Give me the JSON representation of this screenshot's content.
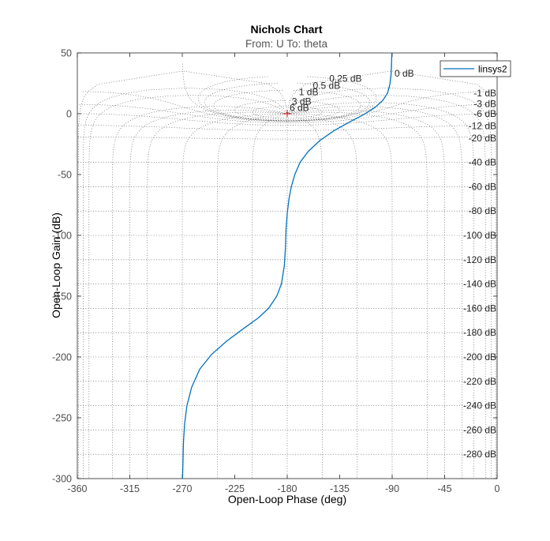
{
  "chart_data": {
    "type": "line",
    "title": "Nichols Chart",
    "subtitle": "From: U  To: theta",
    "xlabel": "Open-Loop Phase (deg)",
    "ylabel": "Open-Loop Gain (dB)",
    "xlim": [
      -360,
      0
    ],
    "ylim": [
      -300,
      50
    ],
    "xticks": [
      -360,
      -315,
      -270,
      -225,
      -180,
      -135,
      -90,
      -45,
      0
    ],
    "yticks": [
      -300,
      -250,
      -200,
      -150,
      -100,
      -50,
      0,
      50
    ],
    "xtick_labels": [
      "-360",
      "-315",
      "-270",
      "-225",
      "-180",
      "-135",
      "-90",
      "-45",
      "0"
    ],
    "ytick_labels": [
      "-300",
      "-250",
      "-200",
      "-150",
      "-100",
      "-50",
      "0",
      "50"
    ],
    "grid": true,
    "legend_position": "top-right",
    "critical_point": [
      -180,
      0
    ],
    "mcircle_labels": [
      {
        "text": "0.25 dB",
        "phase": -144,
        "gain": 29
      },
      {
        "text": "0.5 dB",
        "phase": -158,
        "gain": 23
      },
      {
        "text": "1 dB",
        "phase": -170,
        "gain": 18
      },
      {
        "text": "3 dB",
        "phase": -176,
        "gain": 10
      },
      {
        "text": "6 dB",
        "phase": -178,
        "gain": 5
      },
      {
        "text": "0 dB",
        "phase": -88,
        "gain": 33
      },
      {
        "text": "-1 dB",
        "phase": -20,
        "gain": 17
      },
      {
        "text": "-3 dB",
        "phase": -20,
        "gain": 8
      },
      {
        "text": "-6 dB",
        "phase": -20,
        "gain": 0
      },
      {
        "text": "-12 dB",
        "phase": -20,
        "gain": -10
      },
      {
        "text": "-20 dB",
        "phase": -20,
        "gain": -20
      },
      {
        "text": "-40 dB",
        "phase": -20,
        "gain": -40
      },
      {
        "text": "-60 dB",
        "phase": -20,
        "gain": -60
      },
      {
        "text": "-80 dB",
        "phase": -20,
        "gain": -80
      },
      {
        "text": "-100 dB",
        "phase": -20,
        "gain": -100
      },
      {
        "text": "-120 dB",
        "phase": -20,
        "gain": -120
      },
      {
        "text": "-140 dB",
        "phase": -20,
        "gain": -140
      },
      {
        "text": "-160 dB",
        "phase": -20,
        "gain": -160
      },
      {
        "text": "-180 dB",
        "phase": -20,
        "gain": -180
      },
      {
        "text": "-200 dB",
        "phase": -20,
        "gain": -200
      },
      {
        "text": "-220 dB",
        "phase": -20,
        "gain": -220
      },
      {
        "text": "-240 dB",
        "phase": -20,
        "gain": -240
      },
      {
        "text": "-260 dB",
        "phase": -20,
        "gain": -260
      },
      {
        "text": "-280 dB",
        "phase": -20,
        "gain": -280
      }
    ],
    "series": [
      {
        "name": "linsys2",
        "color": "#0072BD",
        "points": [
          [
            -269.8,
            -300
          ],
          [
            -269.5,
            -290
          ],
          [
            -269.0,
            -270
          ],
          [
            -268.0,
            -255
          ],
          [
            -266.0,
            -240
          ],
          [
            -262.0,
            -225
          ],
          [
            -255.0,
            -210
          ],
          [
            -245.0,
            -198
          ],
          [
            -232.0,
            -187
          ],
          [
            -218.0,
            -177
          ],
          [
            -205.0,
            -168
          ],
          [
            -196.0,
            -160
          ],
          [
            -189.0,
            -150
          ],
          [
            -185.0,
            -140
          ],
          [
            -182.5,
            -125
          ],
          [
            -181.5,
            -110
          ],
          [
            -181.0,
            -95
          ],
          [
            -180.0,
            -82
          ],
          [
            -178.5,
            -70
          ],
          [
            -176.5,
            -60
          ],
          [
            -173.5,
            -50
          ],
          [
            -169.0,
            -40
          ],
          [
            -162.0,
            -31
          ],
          [
            -152.0,
            -22
          ],
          [
            -140.0,
            -14
          ],
          [
            -127.0,
            -7
          ],
          [
            -115.0,
            -1
          ],
          [
            -105.0,
            5
          ],
          [
            -98.0,
            11
          ],
          [
            -94.0,
            17
          ],
          [
            -92.0,
            24
          ],
          [
            -91.0,
            32
          ],
          [
            -90.6,
            40
          ],
          [
            -90.3,
            50
          ]
        ]
      }
    ]
  }
}
